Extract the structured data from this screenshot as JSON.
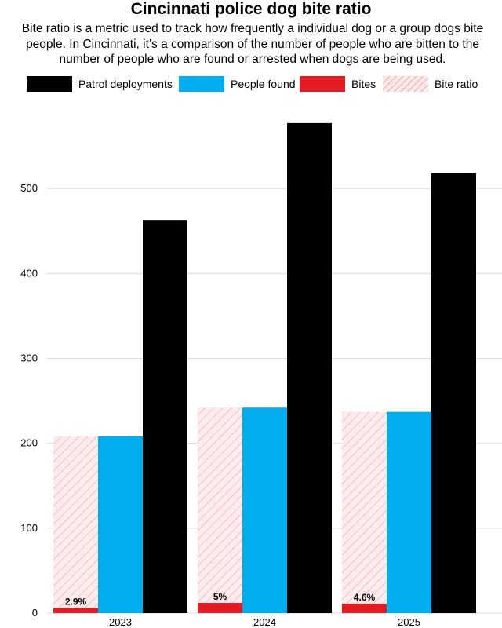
{
  "header": {
    "title": "Cincinnati police dog bite ratio",
    "subtitle": "Bite ratio is a metric used to track how frequently a individual dog or a group dogs bite people. In Cincinnati, it’s a comparison of the number of people who are bitten to the number of people who are found or arrested when dogs are being used."
  },
  "legend": {
    "items": [
      {
        "label": "Patrol deployments",
        "color": "#000000",
        "pattern": "solid"
      },
      {
        "label": "People found",
        "color": "#00aeef",
        "pattern": "solid"
      },
      {
        "label": "Bites",
        "color": "#e31b23",
        "pattern": "solid"
      },
      {
        "label": "Bite ratio",
        "color": "#f4a0a6",
        "pattern": "hatched"
      }
    ]
  },
  "chart_data": {
    "type": "bar",
    "title": "Cincinnati police dog bite ratio",
    "categories": [
      "2023",
      "2024",
      "2025"
    ],
    "ylim": [
      0,
      600
    ],
    "yticks": [
      0,
      100,
      200,
      300,
      400,
      500
    ],
    "grid": true,
    "legend_position": "top",
    "series": [
      {
        "name": "Bite ratio",
        "values": [
          208,
          242,
          237
        ],
        "color": "#f4a0a6",
        "pattern": "hatched"
      },
      {
        "name": "People found",
        "values": [
          208,
          242,
          237
        ],
        "color": "#00aeef"
      },
      {
        "name": "Patrol deployments",
        "values": [
          463,
          577,
          518
        ],
        "color": "#000000"
      },
      {
        "name": "Bites",
        "values": [
          6,
          12,
          11
        ],
        "color": "#e31b23"
      }
    ],
    "bite_ratio_labels": [
      "2.9%",
      "5%",
      "4.6%"
    ]
  }
}
